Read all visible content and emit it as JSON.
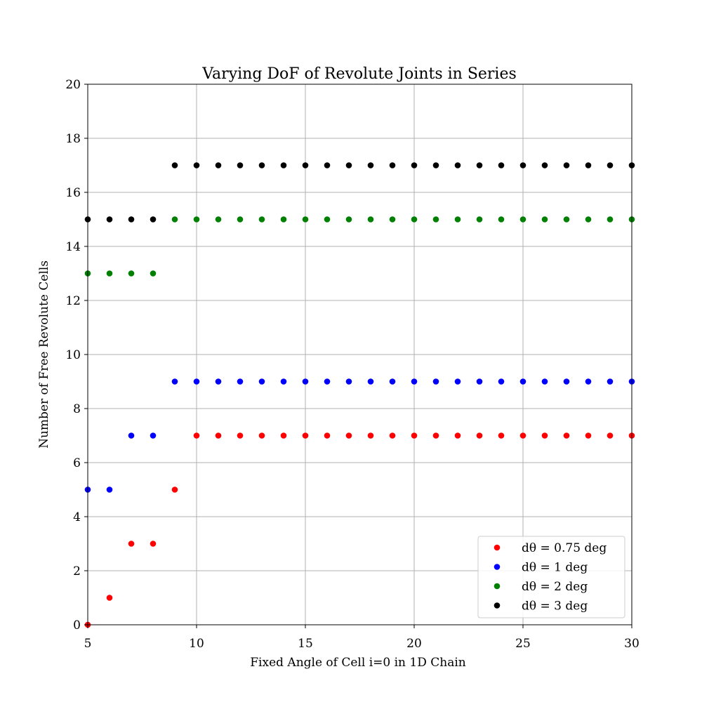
{
  "chart_data": {
    "type": "scatter",
    "title": "Varying DoF of Revolute Joints in Series",
    "xlabel": "Fixed Angle of Cell i=0 in 1D Chain",
    "ylabel": "Number of Free Revolute Cells",
    "xlim": [
      5,
      30
    ],
    "ylim": [
      0,
      20
    ],
    "xticks": [
      5,
      10,
      15,
      20,
      25,
      30
    ],
    "yticks": [
      0,
      2,
      4,
      6,
      8,
      10,
      12,
      14,
      16,
      18,
      20
    ],
    "grid": true,
    "legend_position": "lower-right",
    "x": [
      5,
      6,
      7,
      8,
      9,
      10,
      11,
      12,
      13,
      14,
      15,
      16,
      17,
      18,
      19,
      20,
      21,
      22,
      23,
      24,
      25,
      26,
      27,
      28,
      29,
      30
    ],
    "series": [
      {
        "name": "dθ = 0.75 deg",
        "color": "#ff0000",
        "values": [
          0,
          1,
          3,
          3,
          5,
          7,
          7,
          7,
          7,
          7,
          7,
          7,
          7,
          7,
          7,
          7,
          7,
          7,
          7,
          7,
          7,
          7,
          7,
          7,
          7,
          7
        ]
      },
      {
        "name": "dθ = 1 deg",
        "color": "#0000ff",
        "values": [
          5,
          5,
          7,
          7,
          9,
          9,
          9,
          9,
          9,
          9,
          9,
          9,
          9,
          9,
          9,
          9,
          9,
          9,
          9,
          9,
          9,
          9,
          9,
          9,
          9,
          9
        ]
      },
      {
        "name": "dθ = 2 deg",
        "color": "#008000",
        "values": [
          13,
          13,
          13,
          13,
          15,
          15,
          15,
          15,
          15,
          15,
          15,
          15,
          15,
          15,
          15,
          15,
          15,
          15,
          15,
          15,
          15,
          15,
          15,
          15,
          15,
          15
        ]
      },
      {
        "name": "dθ = 3 deg",
        "color": "#000000",
        "values": [
          15,
          15,
          15,
          15,
          17,
          17,
          17,
          17,
          17,
          17,
          17,
          17,
          17,
          17,
          17,
          17,
          17,
          17,
          17,
          17,
          17,
          17,
          17,
          17,
          17,
          17
        ]
      }
    ]
  }
}
